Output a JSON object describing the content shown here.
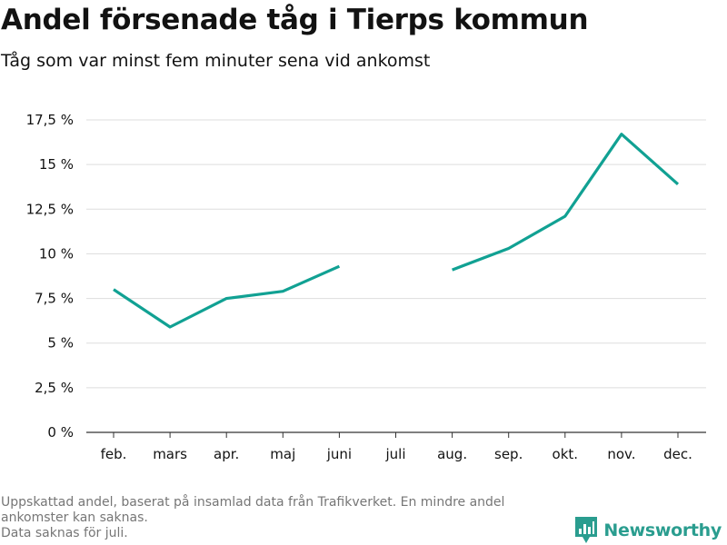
{
  "header": {
    "title": "Andel försenade tåg i Tierps kommun",
    "subtitle": "Tåg som var minst fem minuter sena vid ankomst"
  },
  "footer": {
    "note_line1": "Uppskattad andel, baserat på insamlad data från Trafikverket. En mindre andel ankomster kan saknas.",
    "note_line2": "Data saknas för juli."
  },
  "brand": {
    "name": "Newsworthy",
    "icon": "newsworthy-logo-icon",
    "color": "#2a9d8f"
  },
  "colors": {
    "line": "#11a193",
    "grid": "#dddddd",
    "baseline": "#333333",
    "muted_text": "#767676"
  },
  "chart_data": {
    "type": "line",
    "title": "Andel försenade tåg i Tierps kommun",
    "subtitle": "Tåg som var minst fem minuter sena vid ankomst",
    "categories": [
      "feb.",
      "mars",
      "apr.",
      "maj",
      "juni",
      "juli",
      "aug.",
      "sep.",
      "okt.",
      "nov.",
      "dec."
    ],
    "series": [
      {
        "values": [
          8.0,
          5.9,
          7.5,
          7.9,
          9.3,
          null,
          9.1,
          10.3,
          12.1,
          16.7,
          13.9
        ]
      }
    ],
    "y_ticks": [
      0,
      2.5,
      5,
      7.5,
      10,
      12.5,
      15,
      17.5
    ],
    "y_tick_labels": [
      "0 %",
      "2,5 %",
      "5 %",
      "7,5 %",
      "10 %",
      "12,5 %",
      "15 %",
      "17,5 %"
    ],
    "ylim": [
      0,
      17.5
    ],
    "grid": true,
    "legend": "none"
  }
}
